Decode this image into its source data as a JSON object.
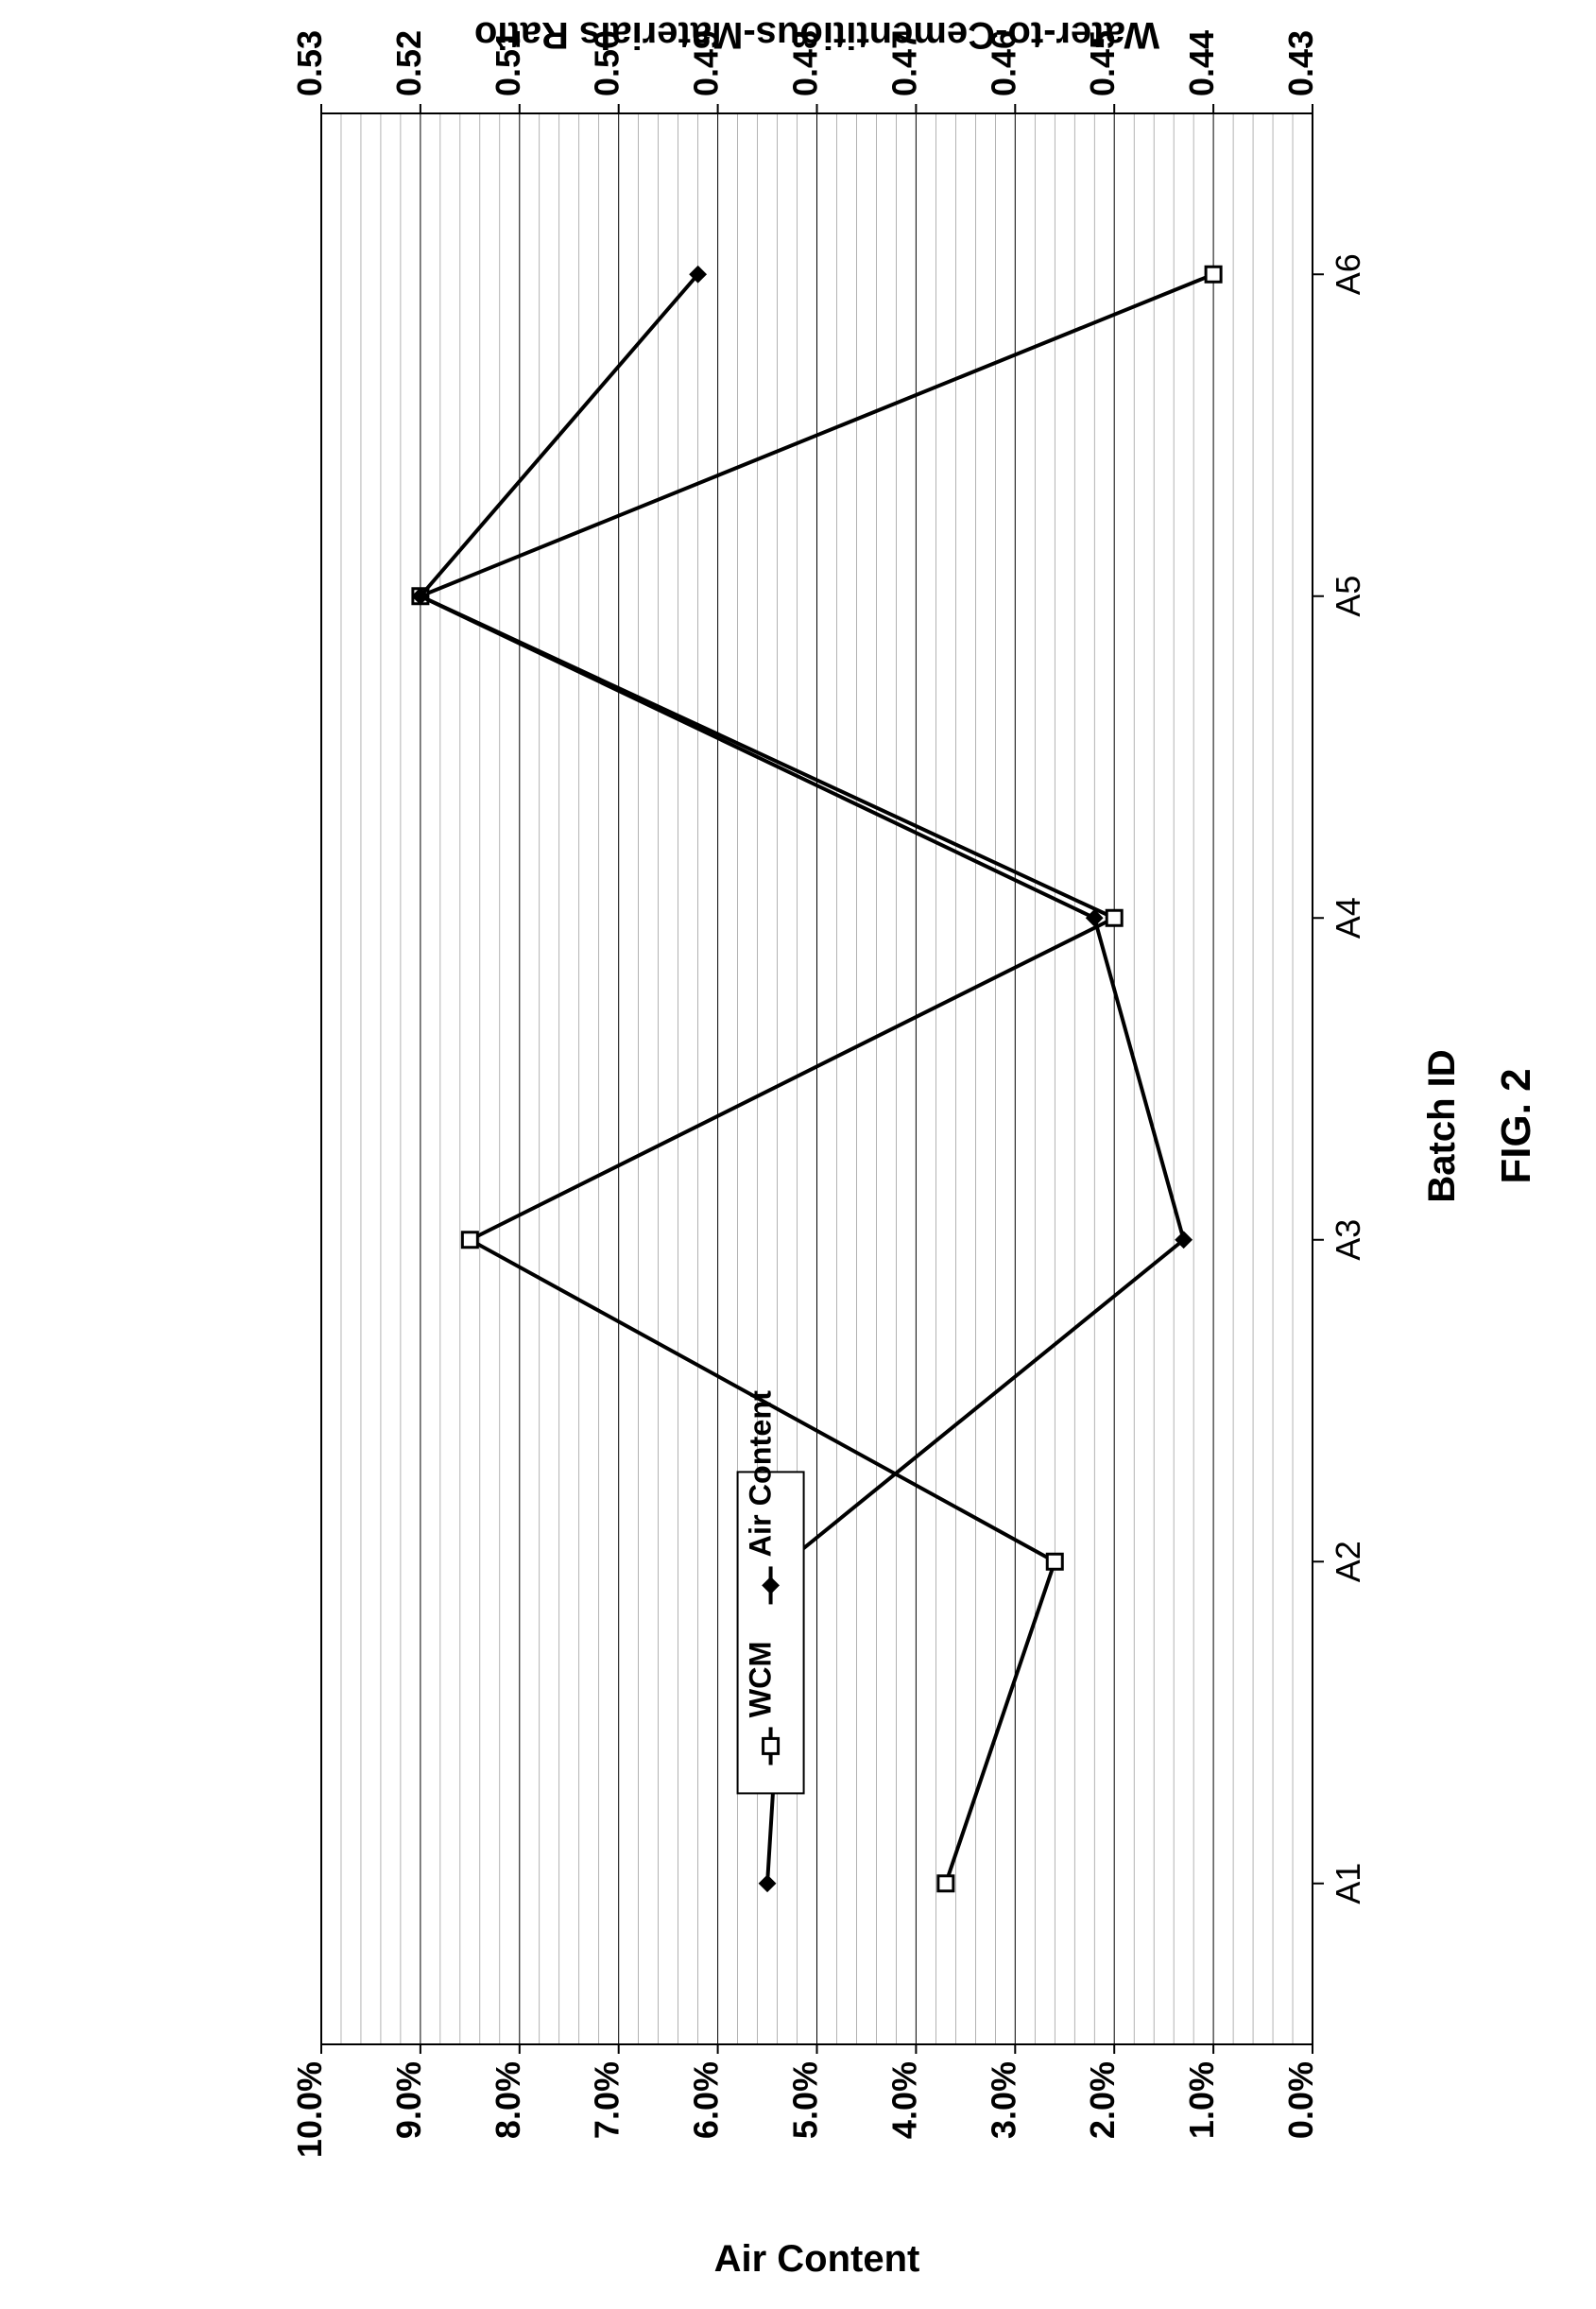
{
  "figure_caption": "FIG. 2",
  "chart": {
    "type": "line",
    "rotation_deg": 90,
    "background_color": "#ffffff",
    "plot_background": "#ffffff",
    "border_color": "#000000",
    "grid_color_major": "#000000",
    "grid_color_minor": "#808080",
    "grid_minor_count_between_major": 4,
    "line_width_series": 4,
    "line_width_grid_major": 1,
    "line_width_grid_minor": 0.6,
    "marker_size": 16,
    "font_family": "Arial",
    "tick_fontsize": 36,
    "axis_label_fontsize": 40,
    "caption_fontsize": 44,
    "x": {
      "label": "Batch ID",
      "categories": [
        "A1",
        "A2",
        "A3",
        "A4",
        "A5",
        "A6"
      ]
    },
    "y_left": {
      "label": "Water-to-Cementitious-Materials Ratio",
      "min": 0.43,
      "max": 0.53,
      "tick_step": 0.01,
      "tick_labels": [
        "0.43",
        "0.44",
        "0.45",
        "0.46",
        "0.47",
        "0.48",
        "0.49",
        "0.50",
        "0.51",
        "0.52",
        "0.53"
      ]
    },
    "y_right": {
      "label": "Air Content",
      "min": 0.0,
      "max": 10.0,
      "tick_step": 1.0,
      "tick_labels": [
        "0.0%",
        "1.0%",
        "2.0%",
        "3.0%",
        "4.0%",
        "5.0%",
        "6.0%",
        "7.0%",
        "8.0%",
        "9.0%",
        "10.0%"
      ]
    },
    "series": [
      {
        "name": "WCM",
        "axis": "y_left",
        "marker": "square-open",
        "marker_fill": "#ffffff",
        "marker_stroke": "#000000",
        "line_color": "#000000",
        "values": [
          0.467,
          0.456,
          0.515,
          0.45,
          0.52,
          0.44
        ]
      },
      {
        "name": "Air Content",
        "axis": "y_right",
        "marker": "diamond-filled",
        "marker_fill": "#000000",
        "marker_stroke": "#000000",
        "line_color": "#000000",
        "values": [
          5.5,
          5.3,
          1.3,
          2.2,
          9.0,
          6.2
        ]
      }
    ],
    "legend": {
      "position": "inside-top-left",
      "border_color": "#000000",
      "background": "#ffffff",
      "items": [
        "WCM",
        "Air Content"
      ]
    }
  }
}
